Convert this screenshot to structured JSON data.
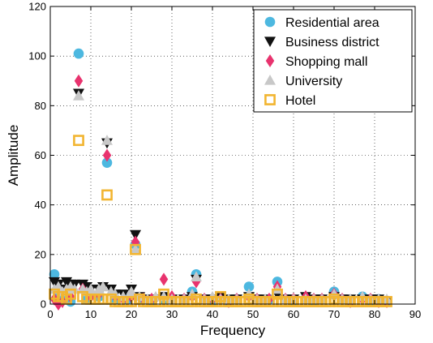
{
  "chart_data": {
    "type": "scatter",
    "xlabel": "Frequency",
    "ylabel": "Amplitude",
    "xlim": [
      0,
      90
    ],
    "ylim": [
      0,
      120
    ],
    "xticks": [
      0,
      10,
      20,
      30,
      40,
      50,
      60,
      70,
      80,
      90
    ],
    "yticks": [
      0,
      20,
      40,
      60,
      80,
      100,
      120
    ],
    "grid": true,
    "legend_position": "top-right",
    "series": [
      {
        "name": "Residential area",
        "marker": "circle",
        "color": "#4db8e0",
        "points": [
          [
            1,
            12
          ],
          [
            2,
            4
          ],
          [
            3,
            2
          ],
          [
            5,
            1
          ],
          [
            7,
            101
          ],
          [
            9,
            2
          ],
          [
            12,
            3
          ],
          [
            14,
            57
          ],
          [
            16,
            2
          ],
          [
            19,
            2
          ],
          [
            21,
            24
          ],
          [
            23,
            2
          ],
          [
            25,
            1
          ],
          [
            28,
            2
          ],
          [
            30,
            2
          ],
          [
            33,
            2
          ],
          [
            35,
            5
          ],
          [
            36,
            12
          ],
          [
            38,
            2
          ],
          [
            40,
            1
          ],
          [
            42,
            2
          ],
          [
            44,
            1
          ],
          [
            46,
            2
          ],
          [
            49,
            7
          ],
          [
            51,
            2
          ],
          [
            54,
            2
          ],
          [
            56,
            9
          ],
          [
            58,
            2
          ],
          [
            60,
            1
          ],
          [
            63,
            2
          ],
          [
            65,
            1
          ],
          [
            67,
            2
          ],
          [
            70,
            5
          ],
          [
            72,
            2
          ],
          [
            74,
            1
          ],
          [
            77,
            3
          ],
          [
            79,
            1
          ],
          [
            81,
            2
          ],
          [
            83,
            1
          ]
        ]
      },
      {
        "name": "Business district",
        "marker": "triangle-down",
        "color": "#111111",
        "points": [
          [
            1,
            9
          ],
          [
            2,
            8
          ],
          [
            3,
            6
          ],
          [
            4,
            9
          ],
          [
            5,
            8
          ],
          [
            6,
            8
          ],
          [
            7,
            85
          ],
          [
            8,
            8
          ],
          [
            9,
            7
          ],
          [
            10,
            6
          ],
          [
            12,
            6
          ],
          [
            13,
            7
          ],
          [
            14,
            65
          ],
          [
            15,
            6
          ],
          [
            16,
            4
          ],
          [
            18,
            4
          ],
          [
            20,
            6
          ],
          [
            21,
            28
          ],
          [
            22,
            3
          ],
          [
            24,
            2
          ],
          [
            26,
            2
          ],
          [
            28,
            3
          ],
          [
            30,
            2
          ],
          [
            33,
            2
          ],
          [
            35,
            3
          ],
          [
            36,
            10
          ],
          [
            38,
            2
          ],
          [
            40,
            2
          ],
          [
            42,
            3
          ],
          [
            44,
            2
          ],
          [
            46,
            2
          ],
          [
            49,
            3
          ],
          [
            51,
            2
          ],
          [
            53,
            2
          ],
          [
            56,
            4
          ],
          [
            58,
            2
          ],
          [
            60,
            2
          ],
          [
            63,
            3
          ],
          [
            65,
            2
          ],
          [
            67,
            2
          ],
          [
            70,
            3
          ],
          [
            72,
            2
          ],
          [
            74,
            2
          ],
          [
            77,
            2
          ],
          [
            79,
            2
          ],
          [
            81,
            2
          ],
          [
            83,
            1
          ]
        ]
      },
      {
        "name": "Shopping mall",
        "marker": "diamond",
        "color": "#e8336e",
        "points": [
          [
            1,
            2
          ],
          [
            2,
            0
          ],
          [
            3,
            1
          ],
          [
            5,
            3
          ],
          [
            7,
            90
          ],
          [
            8,
            6
          ],
          [
            10,
            3
          ],
          [
            12,
            4
          ],
          [
            14,
            60
          ],
          [
            16,
            3
          ],
          [
            18,
            2
          ],
          [
            20,
            3
          ],
          [
            21,
            25
          ],
          [
            23,
            2
          ],
          [
            25,
            2
          ],
          [
            28,
            10
          ],
          [
            30,
            3
          ],
          [
            33,
            2
          ],
          [
            35,
            3
          ],
          [
            36,
            9
          ],
          [
            38,
            2
          ],
          [
            40,
            2
          ],
          [
            42,
            2
          ],
          [
            44,
            1
          ],
          [
            46,
            2
          ],
          [
            49,
            3
          ],
          [
            51,
            2
          ],
          [
            54,
            2
          ],
          [
            56,
            7
          ],
          [
            58,
            2
          ],
          [
            60,
            2
          ],
          [
            63,
            3
          ],
          [
            65,
            2
          ],
          [
            67,
            2
          ],
          [
            70,
            4
          ],
          [
            72,
            2
          ],
          [
            74,
            1
          ],
          [
            77,
            2
          ],
          [
            79,
            2
          ],
          [
            81,
            1
          ],
          [
            83,
            1
          ]
        ]
      },
      {
        "name": "University",
        "marker": "triangle-up",
        "color": "#c8c8c8",
        "points": [
          [
            1,
            6
          ],
          [
            2,
            7
          ],
          [
            3,
            5
          ],
          [
            4,
            6
          ],
          [
            5,
            7
          ],
          [
            6,
            6
          ],
          [
            7,
            84
          ],
          [
            8,
            6
          ],
          [
            9,
            5
          ],
          [
            10,
            6
          ],
          [
            12,
            6
          ],
          [
            13,
            7
          ],
          [
            14,
            66
          ],
          [
            15,
            5
          ],
          [
            16,
            4
          ],
          [
            18,
            3
          ],
          [
            20,
            5
          ],
          [
            21,
            22
          ],
          [
            22,
            3
          ],
          [
            24,
            2
          ],
          [
            26,
            3
          ],
          [
            28,
            3
          ],
          [
            30,
            2
          ],
          [
            33,
            2
          ],
          [
            35,
            4
          ],
          [
            36,
            11
          ],
          [
            38,
            2
          ],
          [
            40,
            3
          ],
          [
            42,
            2
          ],
          [
            44,
            2
          ],
          [
            46,
            2
          ],
          [
            49,
            4
          ],
          [
            51,
            2
          ],
          [
            53,
            2
          ],
          [
            56,
            6
          ],
          [
            58,
            2
          ],
          [
            60,
            2
          ],
          [
            63,
            2
          ],
          [
            65,
            2
          ],
          [
            67,
            2
          ],
          [
            70,
            4
          ],
          [
            72,
            2
          ],
          [
            74,
            2
          ],
          [
            77,
            3
          ],
          [
            79,
            2
          ],
          [
            81,
            2
          ],
          [
            83,
            2
          ]
        ]
      },
      {
        "name": "Hotel",
        "marker": "square-open",
        "color": "#f2b531",
        "points": [
          [
            1,
            4
          ],
          [
            2,
            3
          ],
          [
            3,
            3
          ],
          [
            4,
            2
          ],
          [
            5,
            4
          ],
          [
            7,
            66
          ],
          [
            8,
            3
          ],
          [
            9,
            2
          ],
          [
            10,
            2
          ],
          [
            11,
            2
          ],
          [
            12,
            2
          ],
          [
            13,
            2
          ],
          [
            14,
            44
          ],
          [
            15,
            2
          ],
          [
            16,
            1
          ],
          [
            17,
            1
          ],
          [
            18,
            1
          ],
          [
            19,
            1
          ],
          [
            20,
            1
          ],
          [
            21,
            22
          ],
          [
            22,
            2
          ],
          [
            23,
            1
          ],
          [
            24,
            1
          ],
          [
            25,
            1
          ],
          [
            26,
            1
          ],
          [
            27,
            1
          ],
          [
            28,
            4
          ],
          [
            29,
            1
          ],
          [
            30,
            1
          ],
          [
            31,
            1
          ],
          [
            32,
            1
          ],
          [
            33,
            1
          ],
          [
            34,
            1
          ],
          [
            35,
            1
          ],
          [
            36,
            2
          ],
          [
            37,
            1
          ],
          [
            38,
            1
          ],
          [
            39,
            1
          ],
          [
            40,
            1
          ],
          [
            41,
            1
          ],
          [
            42,
            3
          ],
          [
            43,
            1
          ],
          [
            44,
            1
          ],
          [
            45,
            1
          ],
          [
            46,
            1
          ],
          [
            47,
            1
          ],
          [
            48,
            1
          ],
          [
            49,
            2
          ],
          [
            50,
            1
          ],
          [
            51,
            1
          ],
          [
            52,
            1
          ],
          [
            53,
            1
          ],
          [
            54,
            1
          ],
          [
            55,
            1
          ],
          [
            56,
            4
          ],
          [
            57,
            1
          ],
          [
            58,
            1
          ],
          [
            59,
            1
          ],
          [
            60,
            1
          ],
          [
            61,
            1
          ],
          [
            62,
            1
          ],
          [
            63,
            1
          ],
          [
            64,
            1
          ],
          [
            65,
            1
          ],
          [
            66,
            1
          ],
          [
            67,
            1
          ],
          [
            68,
            1
          ],
          [
            69,
            1
          ],
          [
            70,
            2
          ],
          [
            71,
            1
          ],
          [
            72,
            1
          ],
          [
            73,
            1
          ],
          [
            74,
            1
          ],
          [
            75,
            1
          ],
          [
            76,
            1
          ],
          [
            77,
            1
          ],
          [
            78,
            1
          ],
          [
            79,
            1
          ],
          [
            80,
            1
          ],
          [
            81,
            1
          ],
          [
            82,
            1
          ],
          [
            83,
            1
          ]
        ]
      }
    ]
  }
}
